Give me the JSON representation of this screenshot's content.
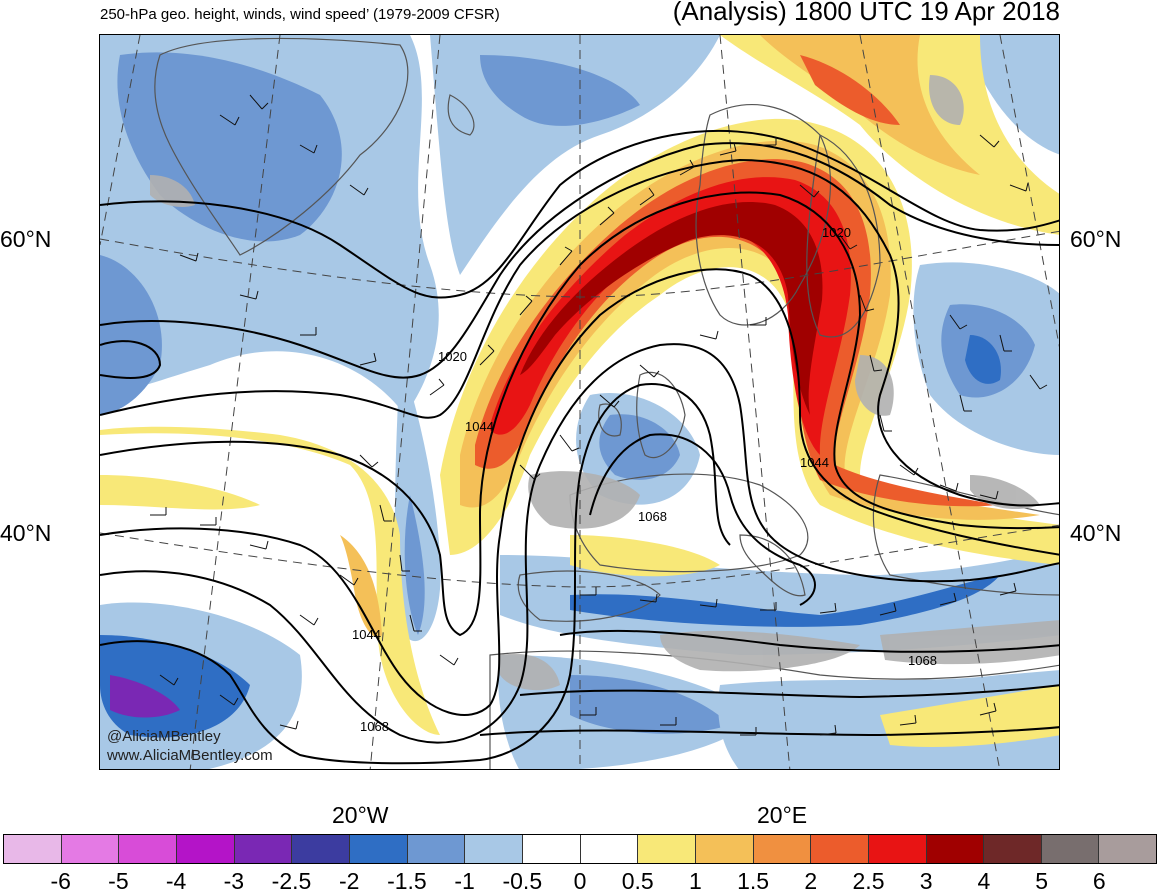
{
  "header": {
    "left_title": "250-hPa geo. height, winds, wind speed’ (1979-2009 CFSR)",
    "right_title": "(Analysis) 1800 UTC 19 Apr 2018"
  },
  "map": {
    "region": "North Atlantic and Europe",
    "lat_labels": {
      "n60_left": "60°N",
      "n60_right": "60°N",
      "n40_left": "40°N",
      "n40_right": "40°N"
    },
    "lon_labels": {
      "w20": "20°W",
      "e20": "20°E"
    },
    "contour_labels": {
      "c1": "1020",
      "c2": "1020",
      "c3": "1044",
      "c4": "1044",
      "c5": "1044",
      "c6": "1068",
      "c7": "1068",
      "c8": "1068"
    },
    "colors": {
      "land": "#b0b0b0",
      "coast": "#555555",
      "height_contour": "#000000"
    }
  },
  "watermark": {
    "line1": "@AliciaMBentley",
    "line2": "www.AliciaMBentley.com"
  },
  "colorbar": {
    "ticks": [
      "-6",
      "-5",
      "-4",
      "-3",
      "-2.5",
      "-2",
      "-1.5",
      "-1",
      "-0.5",
      "0",
      "0.5",
      "1",
      "1.5",
      "2",
      "2.5",
      "3",
      "4",
      "5",
      "6"
    ],
    "colors": [
      "#e8b8e8",
      "#e47ae4",
      "#d84cd8",
      "#b414c8",
      "#7a28b4",
      "#3c3ca0",
      "#2f6ec4",
      "#6e98d2",
      "#a8c8e6",
      "#ffffff",
      "#ffffff",
      "#f8e878",
      "#f4c058",
      "#f09040",
      "#ec5c2c",
      "#e81414",
      "#a00000",
      "#6e2828",
      "#786e6e",
      "#a89c9c"
    ]
  }
}
